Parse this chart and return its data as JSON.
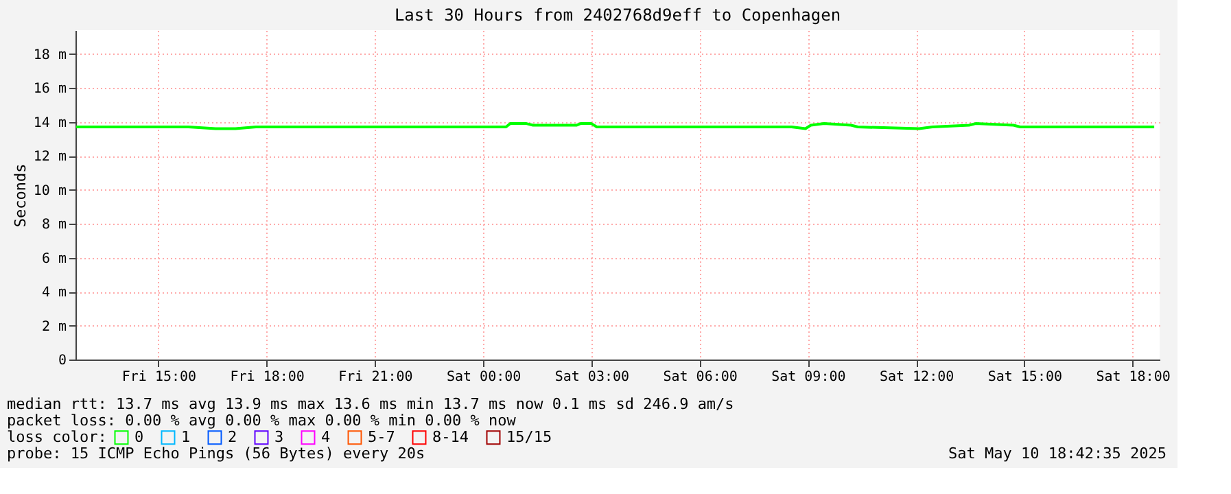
{
  "chart_data": {
    "type": "line",
    "title": "Last 30 Hours from 2402768d9eff to Copenhagen",
    "ylabel": "Seconds",
    "x": [
      "2025-05-09T12:43",
      "2025-05-09T13:57",
      "2025-05-09T15:50",
      "2025-05-09T16:35",
      "2025-05-09T17:08",
      "2025-05-09T17:42",
      "2025-05-09T19:57",
      "2025-05-09T21:27",
      "2025-05-09T22:57",
      "2025-05-10T00:38",
      "2025-05-10T00:45",
      "2025-05-10T01:12",
      "2025-05-10T01:23",
      "2025-05-10T02:35",
      "2025-05-10T02:42",
      "2025-05-10T03:00",
      "2025-05-10T03:09",
      "2025-05-10T04:57",
      "2025-05-10T07:12",
      "2025-05-10T08:33",
      "2025-05-10T08:56",
      "2025-05-10T09:05",
      "2025-05-10T09:27",
      "2025-05-10T10:12",
      "2025-05-10T10:23",
      "2025-05-10T12:05",
      "2025-05-10T12:27",
      "2025-05-10T13:28",
      "2025-05-10T13:39",
      "2025-05-10T14:42",
      "2025-05-10T14:53",
      "2025-05-10T16:57",
      "2025-05-10T17:20",
      "2025-05-10T18:36"
    ],
    "series": [
      {
        "name": "0",
        "color": "#00ff00",
        "values": [
          13.7,
          13.7,
          13.7,
          13.6,
          13.6,
          13.7,
          13.7,
          13.7,
          13.7,
          13.7,
          13.9,
          13.9,
          13.8,
          13.8,
          13.9,
          13.9,
          13.7,
          13.7,
          13.7,
          13.7,
          13.6,
          13.8,
          13.9,
          13.8,
          13.7,
          13.6,
          13.7,
          13.8,
          13.9,
          13.8,
          13.7,
          13.7,
          13.7,
          13.7
        ]
      },
      {
        "name": "1",
        "color": "#00b8ff",
        "values": [
          null,
          null,
          null,
          null,
          null,
          null,
          null,
          null,
          null,
          null,
          null,
          null,
          null,
          null,
          null,
          null,
          null,
          null,
          null,
          null,
          null,
          null,
          null,
          null,
          null,
          null,
          null,
          null,
          null,
          null,
          null,
          null,
          null,
          null
        ]
      },
      {
        "name": "2",
        "color": "#0059ff",
        "values": [
          null,
          null,
          null,
          null,
          null,
          null,
          null,
          null,
          null,
          null,
          null,
          null,
          null,
          null,
          null,
          null,
          null,
          null,
          null,
          null,
          null,
          null,
          null,
          null,
          null,
          null,
          null,
          null,
          null,
          null,
          null,
          null,
          null,
          null
        ]
      },
      {
        "name": "3",
        "color": "#5e00ff",
        "values": [
          null,
          null,
          null,
          null,
          null,
          null,
          null,
          null,
          null,
          null,
          null,
          null,
          null,
          null,
          null,
          null,
          null,
          null,
          null,
          null,
          null,
          null,
          null,
          null,
          null,
          null,
          null,
          null,
          null,
          null,
          null,
          null,
          null,
          null
        ]
      },
      {
        "name": "4",
        "color": "#ff00ff",
        "values": [
          null,
          null,
          null,
          null,
          null,
          null,
          null,
          null,
          null,
          null,
          null,
          null,
          null,
          null,
          null,
          null,
          null,
          null,
          null,
          null,
          null,
          null,
          null,
          null,
          null,
          null,
          null,
          null,
          null,
          null,
          null,
          null,
          null,
          null
        ]
      },
      {
        "name": "5-7",
        "color": "#ff5500",
        "values": [
          null,
          null,
          null,
          null,
          null,
          null,
          null,
          null,
          null,
          null,
          null,
          null,
          null,
          null,
          null,
          null,
          null,
          null,
          null,
          null,
          null,
          null,
          null,
          null,
          null,
          null,
          null,
          null,
          null,
          null,
          null,
          null,
          null,
          null
        ]
      },
      {
        "name": "8-14",
        "color": "#ff0000",
        "values": [
          null,
          null,
          null,
          null,
          null,
          null,
          null,
          null,
          null,
          null,
          null,
          null,
          null,
          null,
          null,
          null,
          null,
          null,
          null,
          null,
          null,
          null,
          null,
          null,
          null,
          null,
          null,
          null,
          null,
          null,
          null,
          null,
          null,
          null
        ]
      },
      {
        "name": "15/15",
        "color": "#a10000",
        "values": [
          null,
          null,
          null,
          null,
          null,
          null,
          null,
          null,
          null,
          null,
          null,
          null,
          null,
          null,
          null,
          null,
          null,
          null,
          null,
          null,
          null,
          null,
          null,
          null,
          null,
          null,
          null,
          null,
          null,
          null,
          null,
          null,
          null,
          null
        ]
      }
    ],
    "legend_title": "loss color:",
    "legend": "bottom",
    "xlim": [
      "2025-05-09T12:42",
      "2025-05-10T18:45"
    ],
    "xticks": [
      {
        "value": "2025-05-09T15:00",
        "label": "Fri 15:00"
      },
      {
        "value": "2025-05-09T18:00",
        "label": "Fri 18:00"
      },
      {
        "value": "2025-05-09T21:00",
        "label": "Fri 21:00"
      },
      {
        "value": "2025-05-10T00:00",
        "label": "Sat 00:00"
      },
      {
        "value": "2025-05-10T03:00",
        "label": "Sat 03:00"
      },
      {
        "value": "2025-05-10T06:00",
        "label": "Sat 06:00"
      },
      {
        "value": "2025-05-10T09:00",
        "label": "Sat 09:00"
      },
      {
        "value": "2025-05-10T12:00",
        "label": "Sat 12:00"
      },
      {
        "value": "2025-05-10T15:00",
        "label": "Sat 15:00"
      },
      {
        "value": "2025-05-10T18:00",
        "label": "Sat 18:00"
      }
    ],
    "ylim": [
      0,
      19.4
    ],
    "yticks": [
      0,
      {
        "value": 2,
        "label": "2 m"
      },
      {
        "value": 4,
        "label": "4 m"
      },
      {
        "value": 6,
        "label": "6 m"
      },
      {
        "value": 8,
        "label": "8 m"
      },
      {
        "value": 10,
        "label": "10 m"
      },
      {
        "value": 12,
        "label": "12 m"
      },
      {
        "value": 14,
        "label": "14 m"
      },
      {
        "value": 16,
        "label": "16 m"
      },
      {
        "value": 18,
        "label": "18 m"
      }
    ],
    "grid": true,
    "marker": "none",
    "line_style": "solid",
    "annotations": [
      "median rtt:  13.7 ms avg  13.9 ms max  13.6 ms min  13.7 ms now  0.1 ms sd  246.9   am/s",
      "packet loss: 0.00 % avg  0.00 % max  0.00 % min  0.00 % now",
      "probe:       15 ICMP Echo Pings (56 Bytes) every 20s",
      "Sat May 10 18:42:35 2025"
    ]
  }
}
